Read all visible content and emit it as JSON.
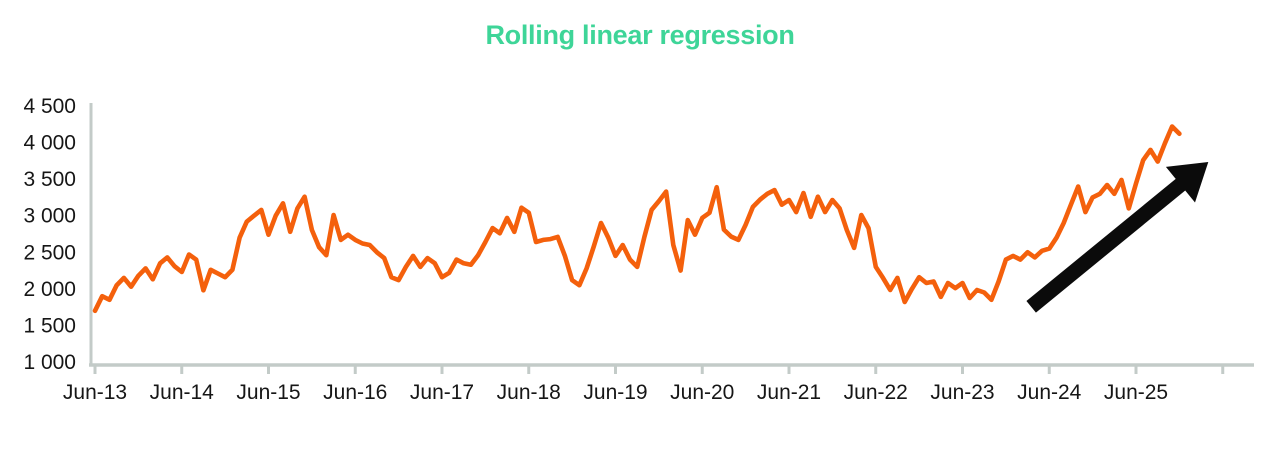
{
  "chart_data": {
    "type": "line",
    "title": "Rolling linear regression",
    "title_color": "#3ED598",
    "axis_color": "#C3CBC8",
    "label_color": "#161616",
    "grid": false,
    "legend": "none",
    "ylim": [
      1000,
      4500
    ],
    "y_ticks": [
      1000,
      1500,
      2000,
      2500,
      3000,
      3500,
      4000,
      4500
    ],
    "y_tick_labels": [
      "1 000",
      "1 500",
      "2 000",
      "2 500",
      "3 000",
      "3 500",
      "4 000",
      "4 500"
    ],
    "x_tick_labels": [
      "Jun-13",
      "Jun-14",
      "Jun-15",
      "Jun-16",
      "Jun-17",
      "Jun-18",
      "Jun-19",
      "Jun-20",
      "Jun-21",
      "Jun-22",
      "Jun-23",
      "Jun-24",
      "Jun-25"
    ],
    "x_start_label": "Jun-13",
    "frequency": "monthly",
    "series": [
      {
        "name": "rolling-linear-regression",
        "color": "#F4600C",
        "values": [
          1700,
          1900,
          1850,
          2050,
          2150,
          2030,
          2180,
          2280,
          2130,
          2350,
          2430,
          2310,
          2230,
          2470,
          2400,
          1980,
          2260,
          2210,
          2160,
          2260,
          2700,
          2920,
          3000,
          3080,
          2740,
          3000,
          3170,
          2780,
          3100,
          3260,
          2805,
          2570,
          2460,
          3010,
          2670,
          2740,
          2670,
          2620,
          2600,
          2500,
          2420,
          2160,
          2120,
          2300,
          2450,
          2300,
          2420,
          2350,
          2160,
          2220,
          2400,
          2350,
          2330,
          2460,
          2640,
          2830,
          2760,
          2970,
          2780,
          3110,
          3040,
          2640,
          2670,
          2680,
          2710,
          2450,
          2120,
          2050,
          2280,
          2580,
          2900,
          2700,
          2450,
          2600,
          2400,
          2300,
          2710,
          3080,
          3200,
          3330,
          2600,
          2250,
          2940,
          2740,
          2970,
          3040,
          3390,
          2810,
          2715,
          2670,
          2875,
          3120,
          3220,
          3300,
          3350,
          3150,
          3215,
          3050,
          3310,
          2985,
          3260,
          3050,
          3215,
          3100,
          2805,
          2560,
          3010,
          2830,
          2300,
          2150,
          1985,
          2150,
          1820,
          2000,
          2160,
          2080,
          2100,
          1890,
          2080,
          2010,
          2080,
          1875,
          1985,
          1950,
          1850,
          2100,
          2400,
          2450,
          2400,
          2500,
          2430,
          2520,
          2550,
          2700,
          2900,
          3150,
          3400,
          3050,
          3250,
          3300,
          3420,
          3300,
          3490,
          3100,
          3440,
          3760,
          3900,
          3740,
          3990,
          4220,
          4120
        ]
      }
    ],
    "annotation_arrow": {
      "meaning": "upward-trend",
      "color": "#0B0B0B",
      "from_month_index": 129.5,
      "from_value": 1755,
      "to_month_index": 154,
      "to_value": 3735
    }
  }
}
